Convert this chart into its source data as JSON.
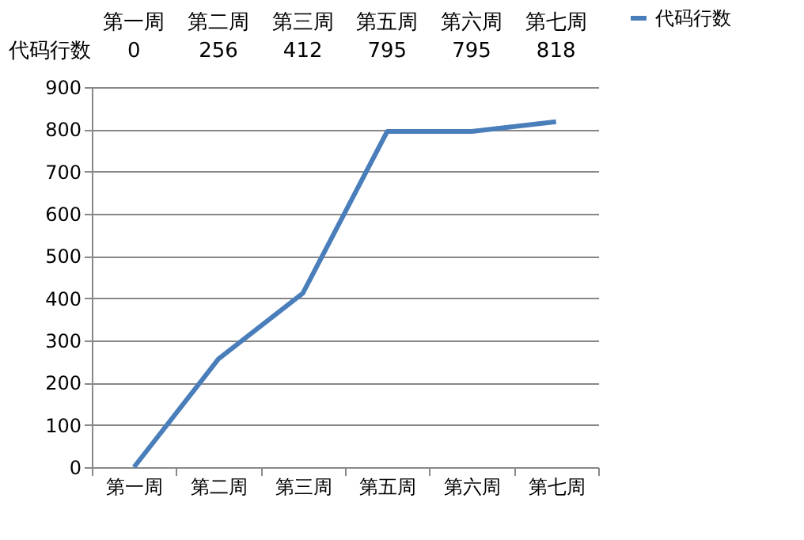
{
  "chart_data": {
    "type": "line",
    "categories": [
      "第一周",
      "第二周",
      "第三周",
      "第五周",
      "第六周",
      "第七周"
    ],
    "series": [
      {
        "name": "代码行数",
        "color": "#4a7ebb",
        "values": [
          0,
          256,
          412,
          795,
          795,
          818
        ]
      }
    ],
    "ylim": [
      0,
      900
    ],
    "yticks": [
      0,
      100,
      200,
      300,
      400,
      500,
      600,
      700,
      800,
      900
    ],
    "grid": "y",
    "legend": "right",
    "data_labels": true,
    "marker": "none",
    "line_style": "solid"
  }
}
